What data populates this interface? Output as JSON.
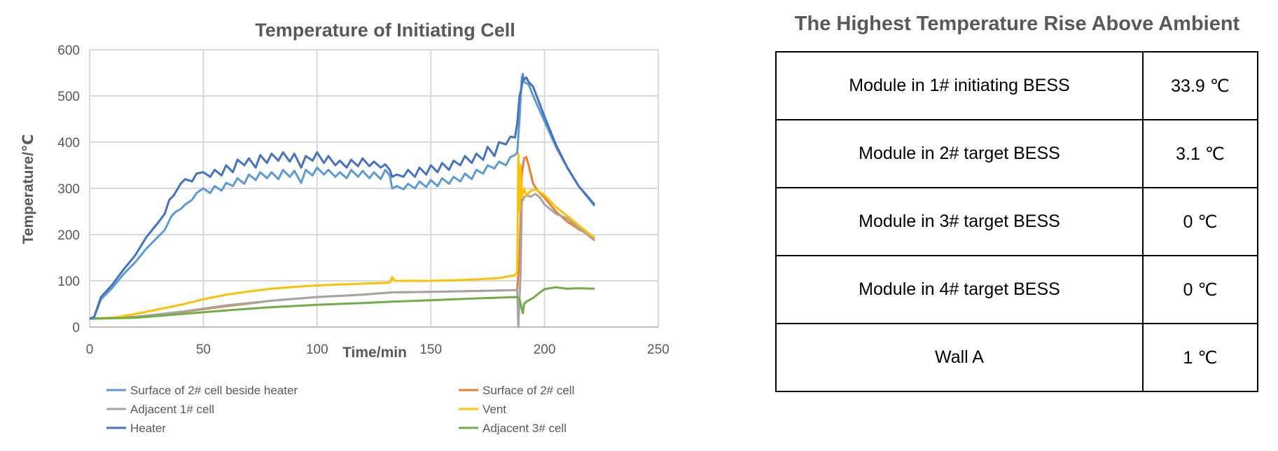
{
  "chart_data": {
    "type": "line",
    "title": "Temperature of Initiating Cell",
    "xlabel": "Time/min",
    "ylabel": "Temperature/℃",
    "xlim": [
      0,
      250
    ],
    "ylim": [
      0,
      600
    ],
    "xticks": [
      0,
      50,
      100,
      150,
      200,
      250
    ],
    "yticks": [
      0,
      100,
      200,
      300,
      400,
      500,
      600
    ],
    "grid": true,
    "legend": "bottom",
    "series": [
      {
        "name": "Surface of 2# cell beside heater",
        "color": "#5B9BD5",
        "x": [
          0,
          2,
          5,
          10,
          15,
          20,
          25,
          30,
          33,
          36,
          38,
          40,
          42,
          45,
          47,
          50,
          53,
          55,
          58,
          60,
          63,
          65,
          68,
          70,
          73,
          75,
          78,
          80,
          83,
          85,
          88,
          90,
          93,
          95,
          98,
          100,
          103,
          105,
          108,
          110,
          113,
          115,
          118,
          120,
          123,
          125,
          128,
          130,
          132,
          133,
          135,
          138,
          140,
          143,
          145,
          148,
          150,
          153,
          155,
          158,
          160,
          163,
          165,
          168,
          170,
          173,
          175,
          178,
          180,
          183,
          185,
          187,
          188,
          189,
          190,
          190.5,
          191,
          193,
          195,
          200,
          205,
          210,
          215,
          222
        ],
        "y": [
          18,
          22,
          60,
          85,
          115,
          140,
          170,
          195,
          210,
          240,
          250,
          255,
          265,
          275,
          290,
          300,
          290,
          305,
          295,
          312,
          305,
          322,
          310,
          330,
          318,
          335,
          322,
          335,
          320,
          340,
          325,
          338,
          312,
          340,
          328,
          345,
          330,
          340,
          325,
          335,
          322,
          340,
          325,
          338,
          322,
          335,
          320,
          340,
          328,
          300,
          305,
          298,
          310,
          300,
          315,
          303,
          318,
          305,
          322,
          310,
          325,
          315,
          332,
          320,
          340,
          332,
          350,
          343,
          358,
          350,
          368,
          372,
          378,
          450,
          540,
          548,
          530,
          525,
          500,
          445,
          390,
          345,
          305,
          262
        ]
      },
      {
        "name": "Surface of 2# cell",
        "color": "#ED7D31",
        "x": [
          0,
          20,
          40,
          60,
          80,
          100,
          120,
          133,
          150,
          170,
          188,
          189,
          190,
          191,
          192,
          193,
          195,
          197,
          200,
          205,
          210,
          215,
          222
        ],
        "y": [
          18,
          22,
          32,
          45,
          57,
          65,
          70,
          75,
          76,
          78,
          80,
          150,
          330,
          365,
          368,
          350,
          310,
          295,
          280,
          250,
          228,
          212,
          192
        ]
      },
      {
        "name": "Adjacent 1# cell",
        "color": "#A5A5A5",
        "x": [
          0,
          20,
          40,
          60,
          80,
          100,
          120,
          133,
          150,
          170,
          188,
          188.5,
          189,
          189.5,
          190,
          191,
          192,
          194,
          196,
          198,
          200,
          205,
          210,
          215,
          222
        ],
        "y": [
          18,
          22,
          33,
          47,
          57,
          65,
          70,
          75,
          76,
          78,
          80,
          0,
          60,
          120,
          270,
          280,
          285,
          282,
          288,
          280,
          265,
          245,
          235,
          215,
          187
        ]
      },
      {
        "name": "Vent",
        "color": "#FFC000",
        "x": [
          0,
          10,
          20,
          30,
          40,
          50,
          60,
          70,
          80,
          90,
          100,
          110,
          120,
          132,
          133,
          134,
          140,
          150,
          160,
          170,
          180,
          187,
          188,
          188.5,
          189,
          189.5,
          190,
          191,
          192,
          194,
          196,
          198,
          200,
          205,
          210,
          215,
          222
        ],
        "y": [
          18,
          20,
          28,
          38,
          48,
          60,
          70,
          77,
          83,
          87,
          90,
          92,
          94,
          96,
          108,
          100,
          100,
          100,
          101,
          103,
          106,
          112,
          120,
          375,
          250,
          350,
          280,
          300,
          285,
          295,
          298,
          292,
          285,
          260,
          240,
          220,
          193
        ]
      },
      {
        "name": "Heater",
        "color": "#4472C4",
        "x": [
          0,
          2,
          5,
          10,
          15,
          20,
          25,
          30,
          33,
          35,
          37,
          40,
          42,
          45,
          47,
          50,
          53,
          55,
          58,
          60,
          63,
          65,
          68,
          70,
          73,
          75,
          78,
          80,
          83,
          85,
          88,
          90,
          93,
          95,
          98,
          100,
          103,
          105,
          108,
          110,
          113,
          115,
          118,
          120,
          123,
          125,
          128,
          130,
          132,
          133,
          135,
          138,
          140,
          143,
          145,
          148,
          150,
          153,
          155,
          158,
          160,
          163,
          165,
          168,
          170,
          173,
          175,
          178,
          180,
          183,
          185,
          187,
          188,
          189,
          190,
          190.5,
          191,
          192,
          193,
          195,
          200,
          205,
          210,
          215,
          222
        ],
        "y": [
          18,
          22,
          65,
          92,
          125,
          155,
          195,
          225,
          245,
          275,
          285,
          310,
          320,
          315,
          332,
          335,
          325,
          340,
          328,
          350,
          335,
          362,
          350,
          365,
          345,
          372,
          355,
          375,
          360,
          378,
          358,
          375,
          345,
          370,
          360,
          378,
          355,
          370,
          350,
          360,
          345,
          362,
          348,
          365,
          348,
          358,
          345,
          352,
          340,
          325,
          330,
          325,
          340,
          325,
          345,
          330,
          350,
          335,
          355,
          340,
          360,
          350,
          370,
          355,
          375,
          362,
          390,
          370,
          400,
          395,
          412,
          410,
          440,
          500,
          520,
          540,
          535,
          540,
          530,
          520,
          455,
          395,
          345,
          305,
          265
        ]
      },
      {
        "name": "Adjacent 3# cell",
        "color": "#70AD47",
        "x": [
          0,
          20,
          40,
          60,
          80,
          100,
          120,
          133,
          150,
          170,
          188,
          189,
          190,
          190.5,
          191,
          192,
          195,
          198,
          200,
          205,
          210,
          215,
          222
        ],
        "y": [
          18,
          20,
          28,
          36,
          43,
          48,
          52,
          55,
          58,
          62,
          65,
          60,
          40,
          30,
          50,
          55,
          63,
          75,
          82,
          86,
          83,
          84,
          83
        ]
      }
    ]
  },
  "table": {
    "title": "The Highest Temperature Rise Above Ambient",
    "rows": [
      {
        "label": "Module in 1# initiating BESS",
        "value": "33.9 ℃"
      },
      {
        "label": "Module in 2# target BESS",
        "value": "3.1 ℃"
      },
      {
        "label": "Module in 3# target BESS",
        "value": "0 ℃"
      },
      {
        "label": "Module in 4# target BESS",
        "value": "0 ℃"
      },
      {
        "label": "Wall A",
        "value": "1 ℃"
      }
    ]
  }
}
